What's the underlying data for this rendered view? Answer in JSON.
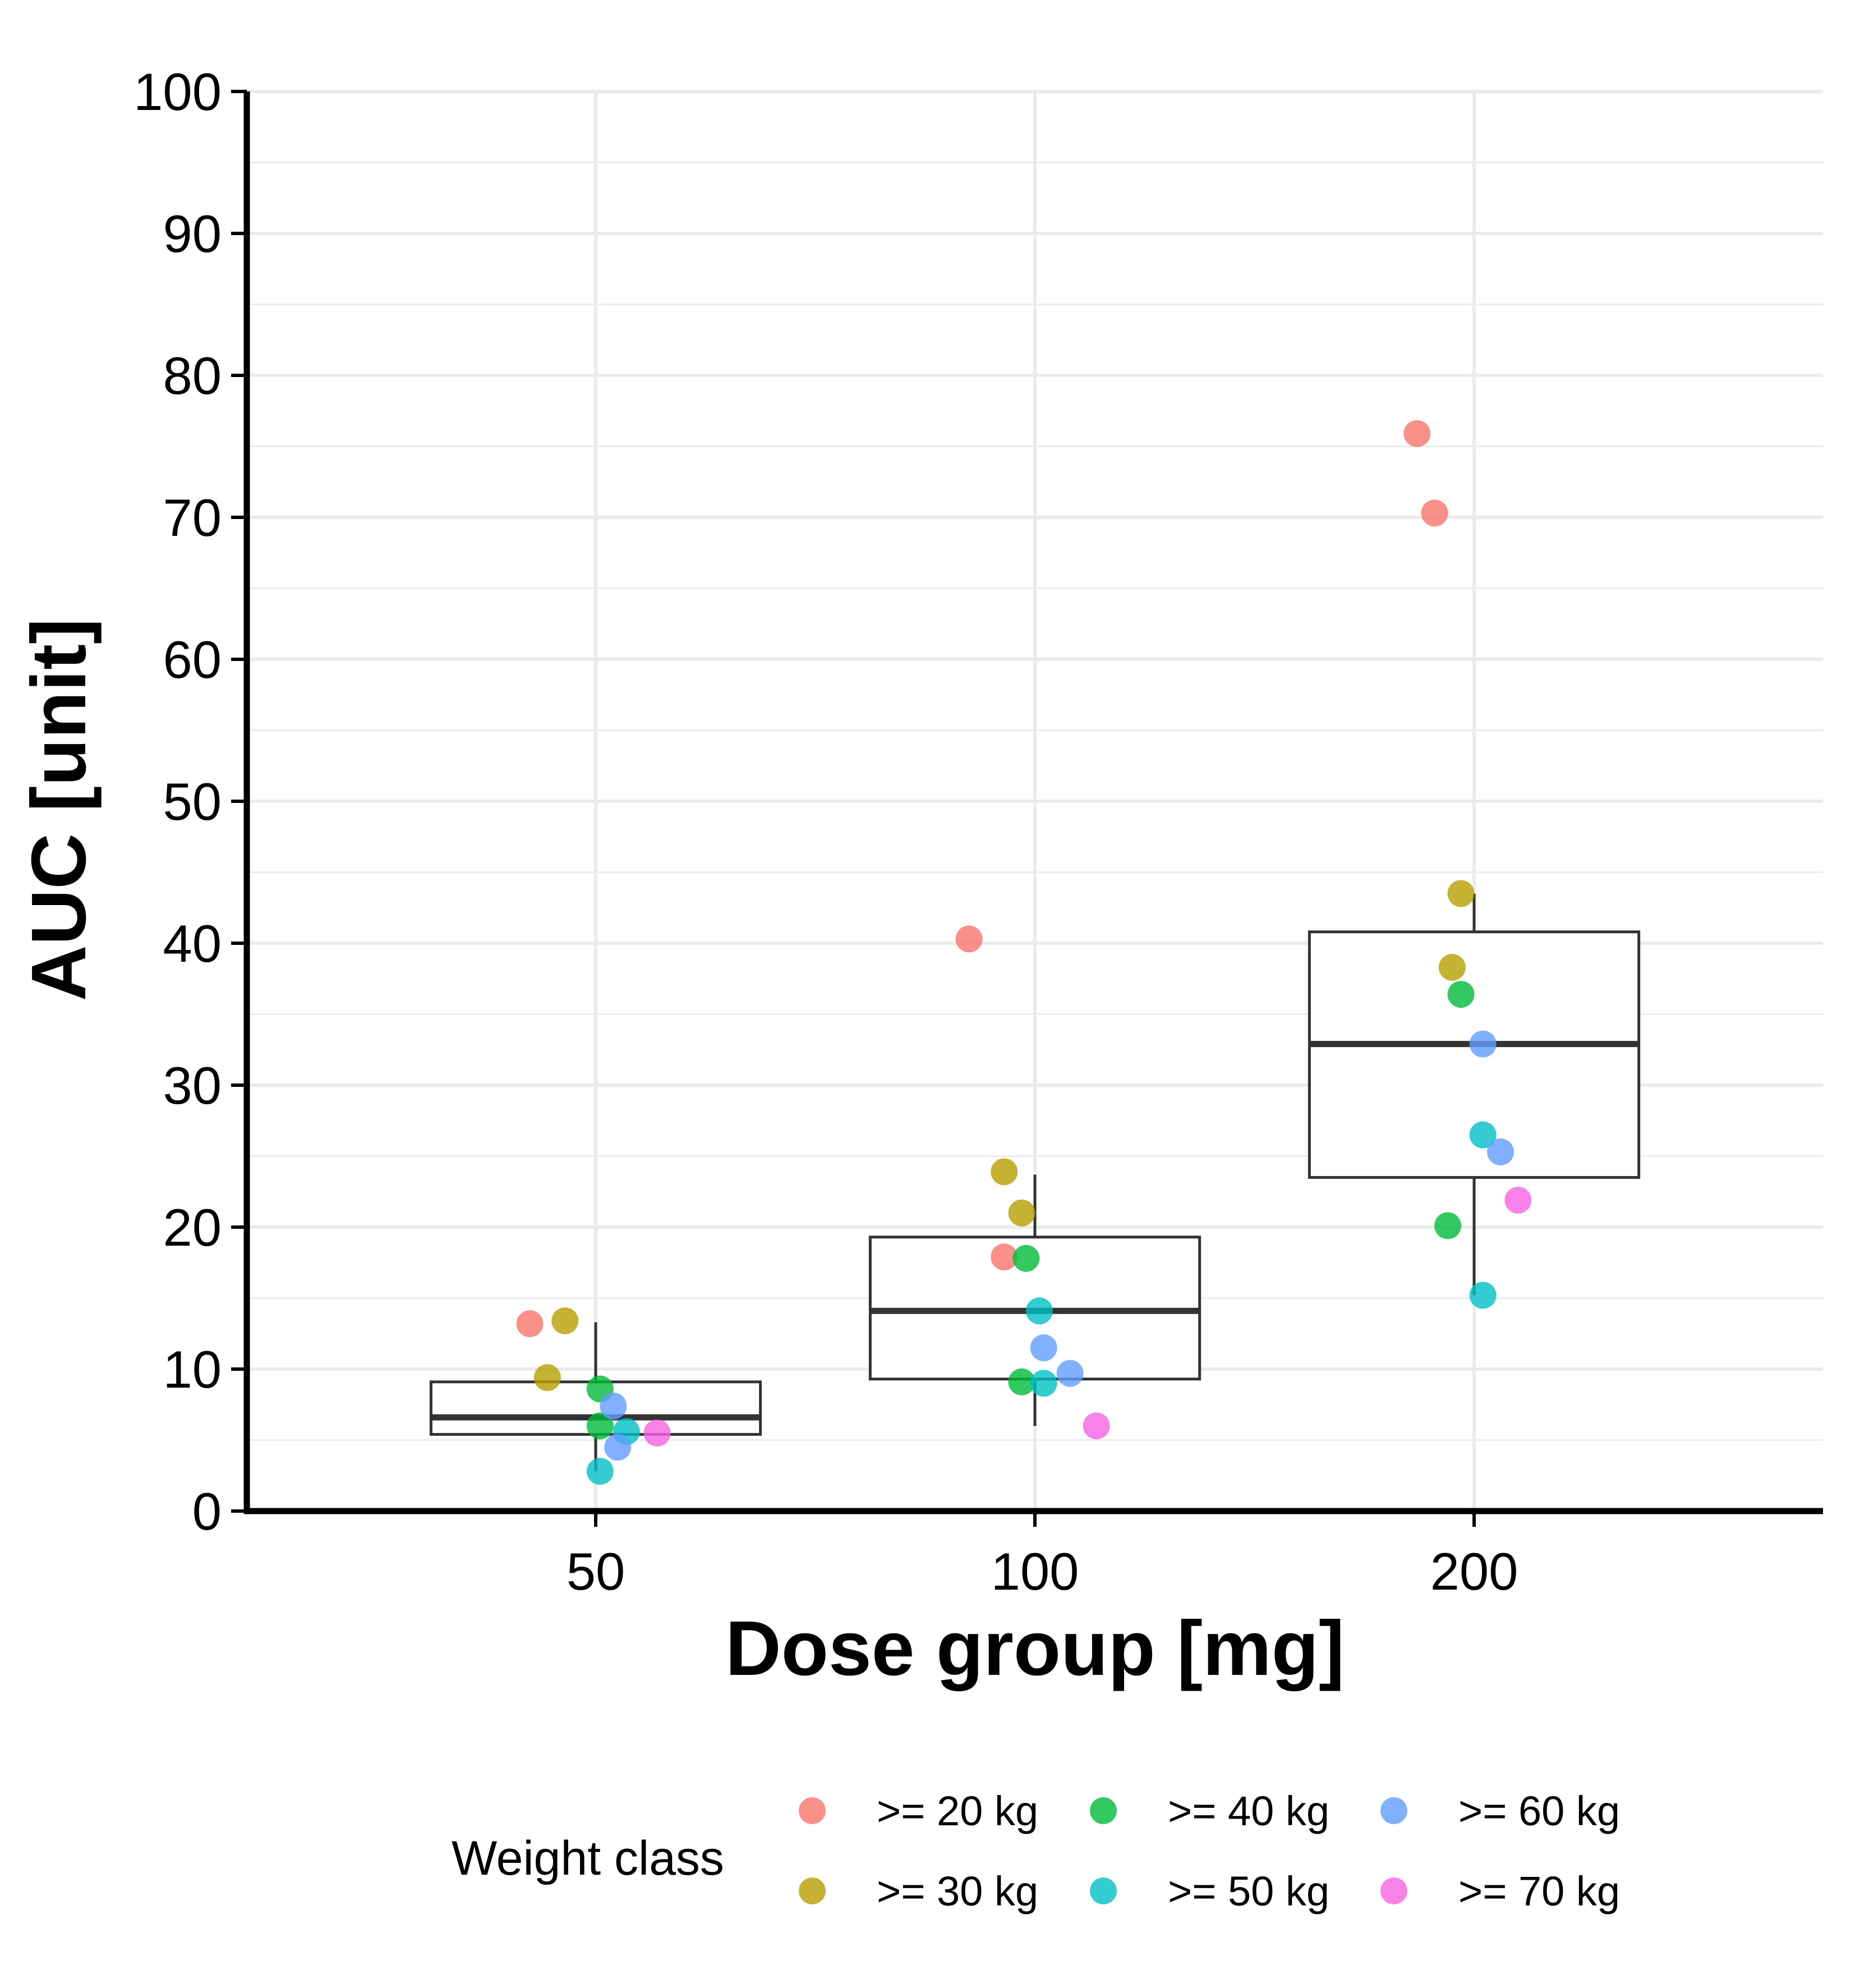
{
  "chart_data": {
    "type": "box",
    "xlabel": "Dose group [mg]",
    "ylabel": "AUC [unit]",
    "categories": [
      "50",
      "100",
      "200"
    ],
    "ylim": [
      0,
      100
    ],
    "yticks": [
      0,
      10,
      20,
      30,
      40,
      50,
      60,
      70,
      80,
      90,
      100
    ],
    "grid": true,
    "boxes": [
      {
        "category": "50",
        "whisker_low": 2.8,
        "q1": 5.4,
        "median": 6.6,
        "q3": 9.1,
        "whisker_high": 13.3
      },
      {
        "category": "100",
        "whisker_low": 6.0,
        "q1": 9.3,
        "median": 14.1,
        "q3": 19.3,
        "whisker_high": 23.7
      },
      {
        "category": "200",
        "whisker_low": 15.2,
        "q1": 23.5,
        "median": 32.9,
        "q3": 40.8,
        "whisker_high": 43.5
      }
    ],
    "legend": {
      "title": "Weight class",
      "position": "bottom",
      "entries": [
        {
          "name": ">= 20 kg",
          "color": "#F8766D"
        },
        {
          "name": ">= 30 kg",
          "color": "#B79F00"
        },
        {
          "name": ">= 40 kg",
          "color": "#00BA38"
        },
        {
          "name": ">= 50 kg",
          "color": "#00BFC4"
        },
        {
          "name": ">= 60 kg",
          "color": "#619CFF"
        },
        {
          "name": ">= 70 kg",
          "color": "#F564E3"
        }
      ]
    },
    "points": [
      {
        "group": ">= 20 kg",
        "category": "50",
        "jitter": -0.15,
        "y": 13.2
      },
      {
        "group": ">= 30 kg",
        "category": "50",
        "jitter": -0.07,
        "y": 13.4
      },
      {
        "group": ">= 30 kg",
        "category": "50",
        "jitter": -0.11,
        "y": 9.4
      },
      {
        "group": ">= 40 kg",
        "category": "50",
        "jitter": 0.01,
        "y": 8.6
      },
      {
        "group": ">= 40 kg",
        "category": "50",
        "jitter": 0.01,
        "y": 6.0
      },
      {
        "group": ">= 50 kg",
        "category": "50",
        "jitter": 0.07,
        "y": 5.6
      },
      {
        "group": ">= 50 kg",
        "category": "50",
        "jitter": 0.01,
        "y": 2.8
      },
      {
        "group": ">= 60 kg",
        "category": "50",
        "jitter": 0.04,
        "y": 7.4
      },
      {
        "group": ">= 60 kg",
        "category": "50",
        "jitter": 0.05,
        "y": 4.5
      },
      {
        "group": ">= 70 kg",
        "category": "50",
        "jitter": 0.14,
        "y": 5.5
      },
      {
        "group": ">= 20 kg",
        "category": "100",
        "jitter": -0.15,
        "y": 40.3
      },
      {
        "group": ">= 20 kg",
        "category": "100",
        "jitter": -0.07,
        "y": 17.9
      },
      {
        "group": ">= 30 kg",
        "category": "100",
        "jitter": -0.07,
        "y": 23.9
      },
      {
        "group": ">= 30 kg",
        "category": "100",
        "jitter": -0.03,
        "y": 21.0
      },
      {
        "group": ">= 40 kg",
        "category": "100",
        "jitter": -0.02,
        "y": 17.8
      },
      {
        "group": ">= 40 kg",
        "category": "100",
        "jitter": -0.03,
        "y": 9.1
      },
      {
        "group": ">= 50 kg",
        "category": "100",
        "jitter": 0.01,
        "y": 14.1
      },
      {
        "group": ">= 50 kg",
        "category": "100",
        "jitter": 0.02,
        "y": 9.0
      },
      {
        "group": ">= 60 kg",
        "category": "100",
        "jitter": 0.02,
        "y": 11.5
      },
      {
        "group": ">= 60 kg",
        "category": "100",
        "jitter": 0.08,
        "y": 9.7
      },
      {
        "group": ">= 70 kg",
        "category": "100",
        "jitter": 0.14,
        "y": 6.0
      },
      {
        "group": ">= 20 kg",
        "category": "200",
        "jitter": -0.13,
        "y": 75.9
      },
      {
        "group": ">= 20 kg",
        "category": "200",
        "jitter": -0.09,
        "y": 70.3
      },
      {
        "group": ">= 30 kg",
        "category": "200",
        "jitter": -0.03,
        "y": 43.5
      },
      {
        "group": ">= 30 kg",
        "category": "200",
        "jitter": -0.05,
        "y": 38.3
      },
      {
        "group": ">= 40 kg",
        "category": "200",
        "jitter": -0.03,
        "y": 36.4
      },
      {
        "group": ">= 40 kg",
        "category": "200",
        "jitter": -0.06,
        "y": 20.1
      },
      {
        "group": ">= 50 kg",
        "category": "200",
        "jitter": 0.02,
        "y": 26.5
      },
      {
        "group": ">= 50 kg",
        "category": "200",
        "jitter": 0.02,
        "y": 15.2
      },
      {
        "group": ">= 60 kg",
        "category": "200",
        "jitter": 0.02,
        "y": 32.9
      },
      {
        "group": ">= 60 kg",
        "category": "200",
        "jitter": 0.06,
        "y": 25.3
      },
      {
        "group": ">= 70 kg",
        "category": "200",
        "jitter": 0.1,
        "y": 21.9
      }
    ]
  }
}
